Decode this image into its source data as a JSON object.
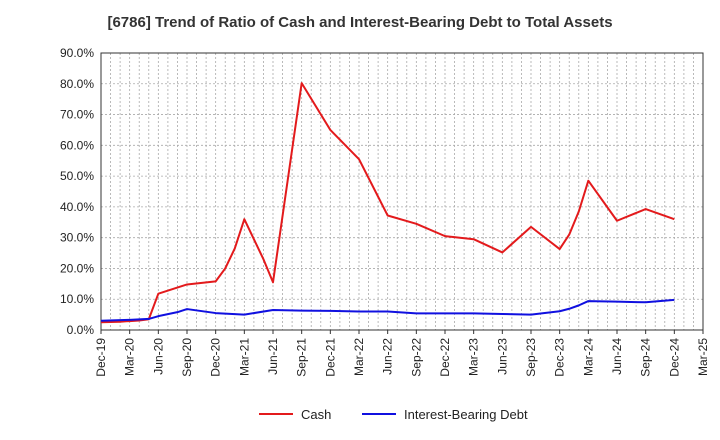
{
  "chart_data": {
    "type": "line",
    "title": "[6786]  Trend of Ratio of Cash and Interest-Bearing Debt to Total Assets",
    "xlabel": "",
    "ylabel": "",
    "ylim": [
      0,
      90
    ],
    "y_ticks": [
      "0.0%",
      "10.0%",
      "20.0%",
      "30.0%",
      "40.0%",
      "50.0%",
      "60.0%",
      "70.0%",
      "80.0%",
      "90.0%"
    ],
    "x_ticks": [
      "Dec-19",
      "Mar-20",
      "Jun-20",
      "Sep-20",
      "Dec-20",
      "Mar-21",
      "Jun-21",
      "Sep-21",
      "Dec-21",
      "Mar-22",
      "Jun-22",
      "Sep-22",
      "Dec-22",
      "Mar-23",
      "Jun-23",
      "Sep-23",
      "Dec-23",
      "Mar-24",
      "Jun-24",
      "Sep-24",
      "Dec-24",
      "Mar-25"
    ],
    "grid": true,
    "legend_position": "bottom",
    "series": [
      {
        "name": "Cash",
        "color": "#e31a1c",
        "points": [
          [
            "Dec-19",
            2.5
          ],
          [
            "Jan-20",
            2.6
          ],
          [
            "Feb-20",
            2.7
          ],
          [
            "Mar-20",
            2.9
          ],
          [
            "Apr-20",
            3.1
          ],
          [
            "May-20",
            3.5
          ],
          [
            "Jun-20",
            11.8
          ],
          [
            "Sep-20",
            14.8
          ],
          [
            "Dec-20",
            15.8
          ],
          [
            "Jan-21",
            20.0
          ],
          [
            "Feb-21",
            26.5
          ],
          [
            "Mar-21",
            36.0
          ],
          [
            "Apr-21",
            29.5
          ],
          [
            "May-21",
            23.0
          ],
          [
            "Jun-21",
            15.5
          ],
          [
            "Sep-21",
            80.2
          ],
          [
            "Dec-21",
            65.0
          ],
          [
            "Mar-22",
            55.5
          ],
          [
            "Jun-22",
            37.2
          ],
          [
            "Sep-22",
            34.5
          ],
          [
            "Dec-22",
            30.5
          ],
          [
            "Mar-23",
            29.5
          ],
          [
            "Jun-23",
            25.2
          ],
          [
            "Sep-23",
            33.5
          ],
          [
            "Dec-23",
            26.3
          ],
          [
            "Jan-24",
            31.0
          ],
          [
            "Feb-24",
            38.5
          ],
          [
            "Mar-24",
            48.5
          ],
          [
            "Jun-24",
            35.5
          ],
          [
            "Sep-24",
            39.3
          ],
          [
            "Dec-24",
            36.0
          ]
        ]
      },
      {
        "name": "Interest-Bearing Debt",
        "color": "#1010e0",
        "points": [
          [
            "Dec-19",
            3.0
          ],
          [
            "Mar-20",
            3.3
          ],
          [
            "May-20",
            3.6
          ],
          [
            "Jun-20",
            4.5
          ],
          [
            "Aug-20",
            5.8
          ],
          [
            "Sep-20",
            6.8
          ],
          [
            "Dec-20",
            5.5
          ],
          [
            "Mar-21",
            5.0
          ],
          [
            "Jun-21",
            6.5
          ],
          [
            "Sep-21",
            6.3
          ],
          [
            "Dec-21",
            6.2
          ],
          [
            "Mar-22",
            6.0
          ],
          [
            "Jun-22",
            6.0
          ],
          [
            "Sep-22",
            5.4
          ],
          [
            "Dec-22",
            5.4
          ],
          [
            "Mar-23",
            5.4
          ],
          [
            "Jun-23",
            5.2
          ],
          [
            "Sep-23",
            5.0
          ],
          [
            "Dec-23",
            6.1
          ],
          [
            "Jan-24",
            6.9
          ],
          [
            "Feb-24",
            8.0
          ],
          [
            "Mar-24",
            9.4
          ],
          [
            "Jun-24",
            9.2
          ],
          [
            "Sep-24",
            9.0
          ],
          [
            "Dec-24",
            9.8
          ]
        ]
      }
    ]
  }
}
